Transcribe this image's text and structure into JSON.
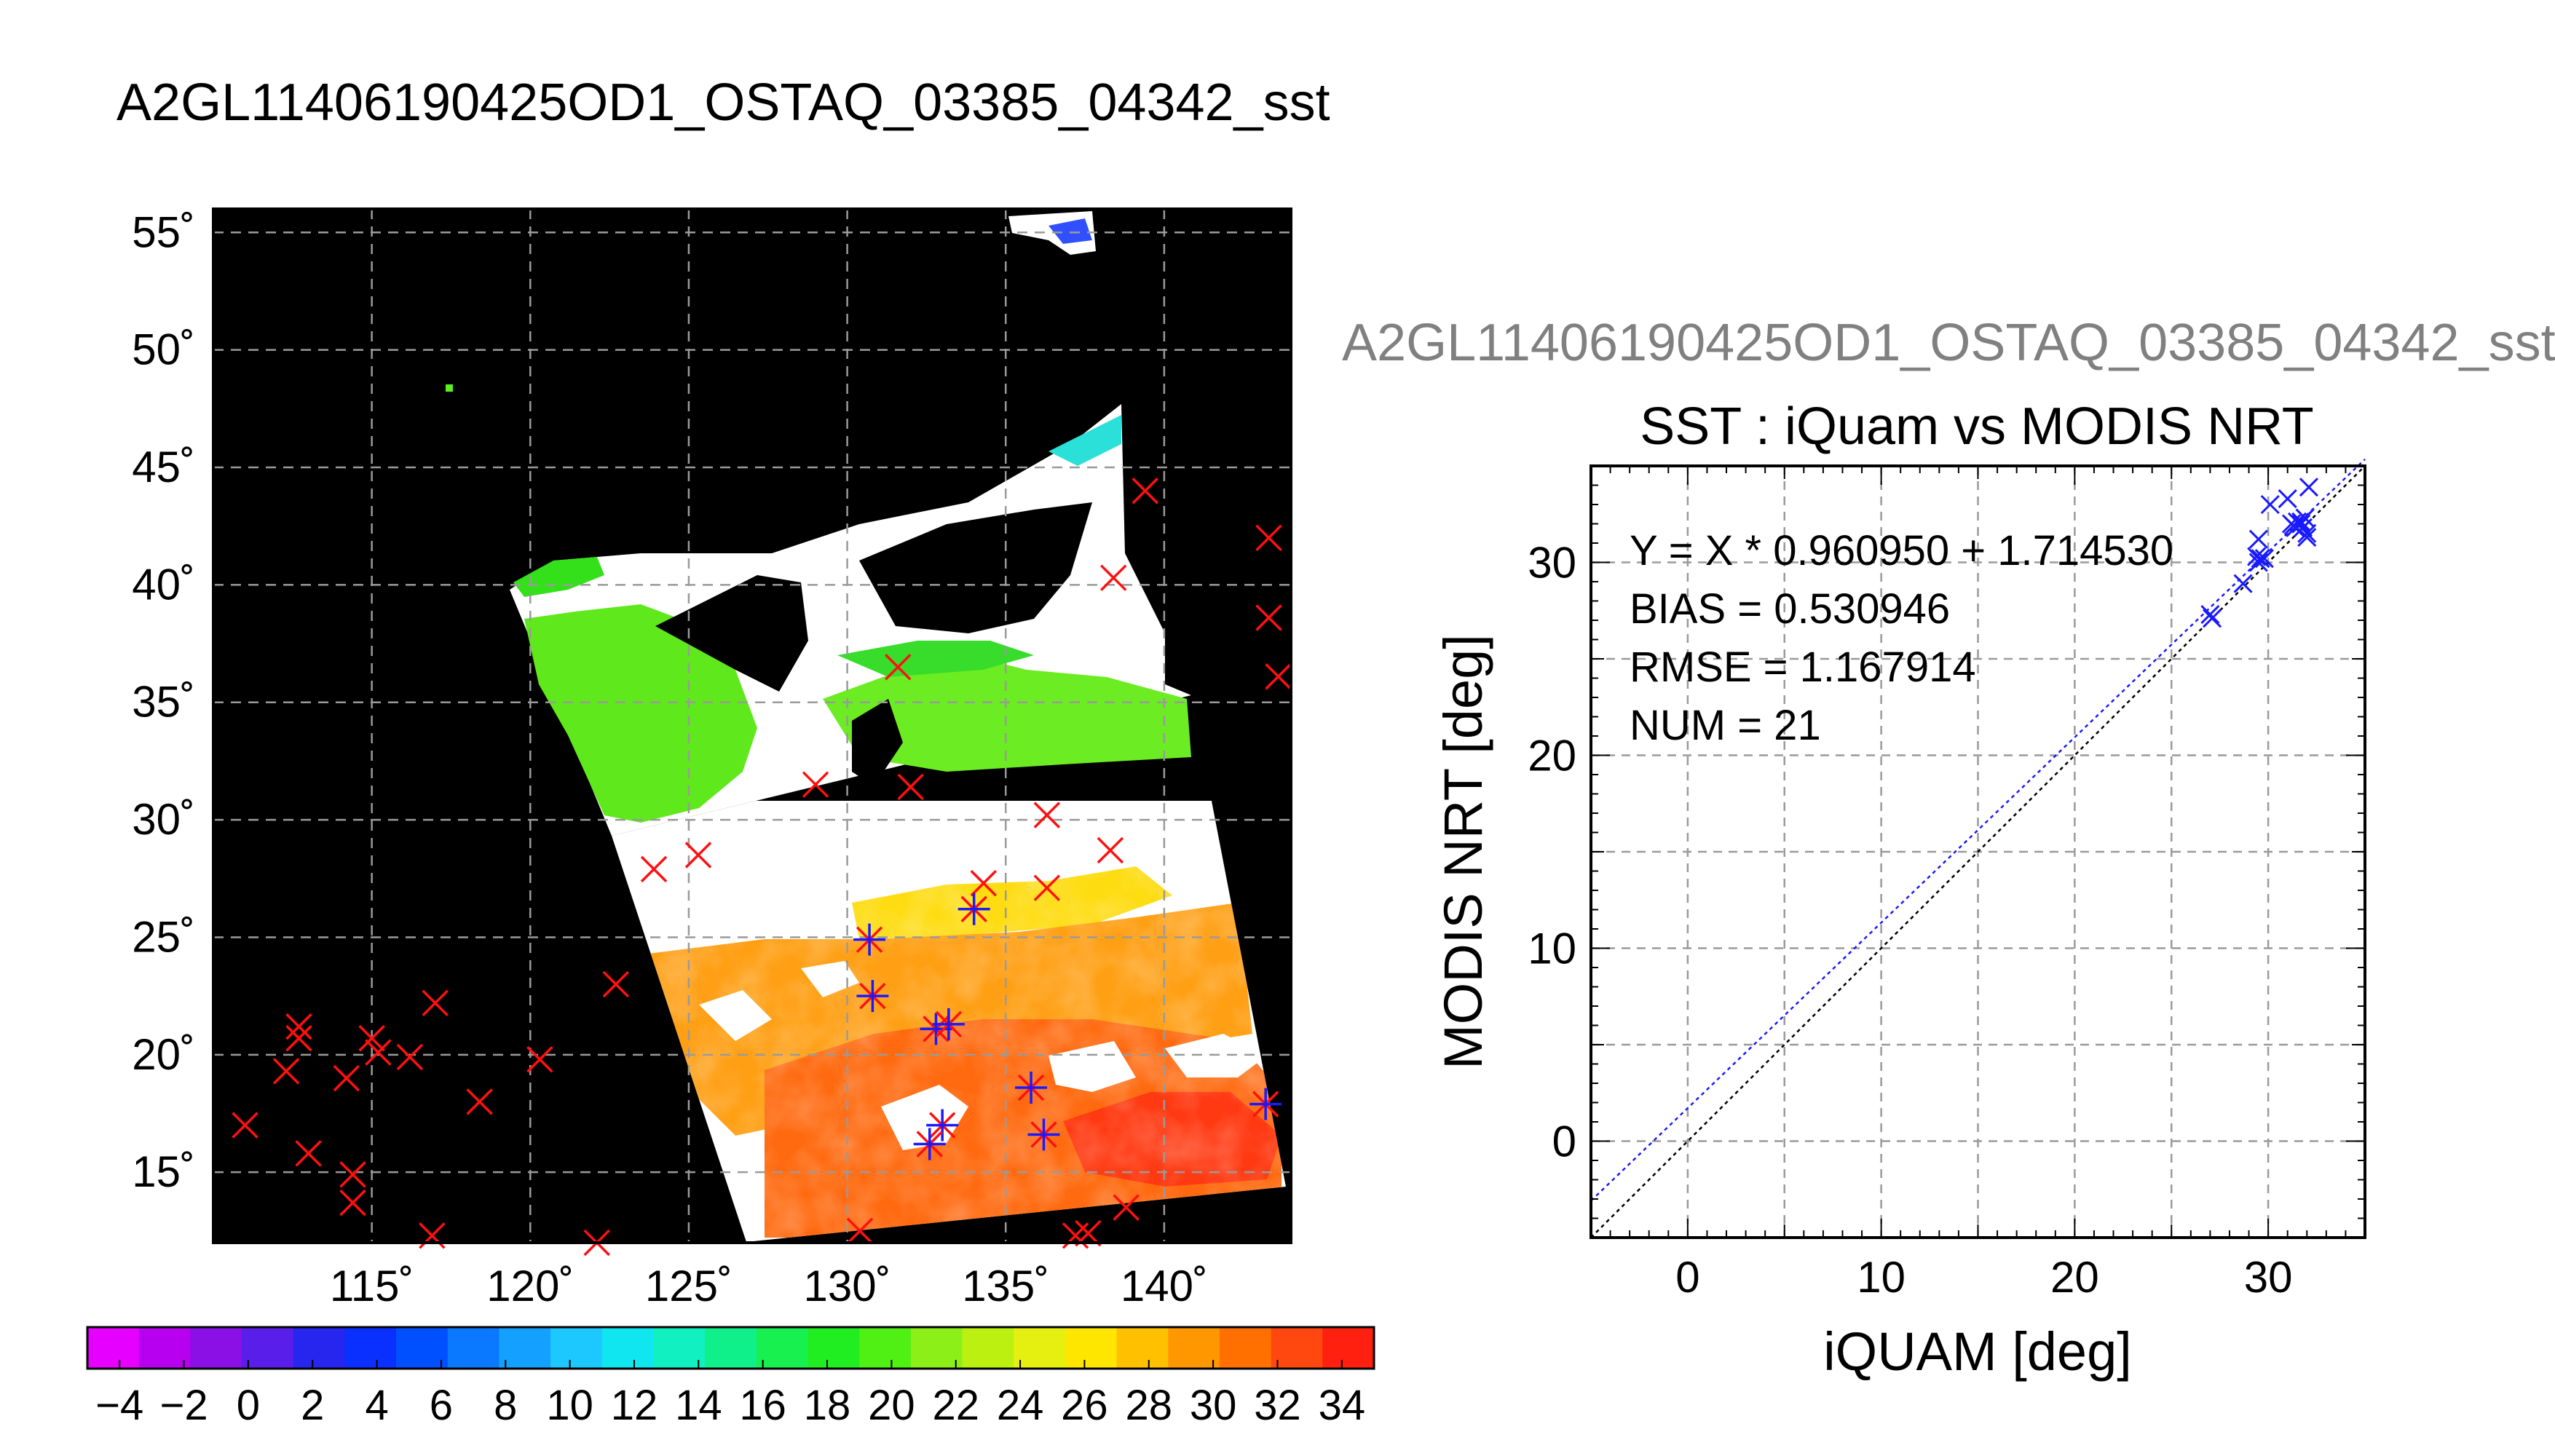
{
  "chart_data": [
    {
      "type": "heatmap",
      "title": "A2GL11406190425OD1_OSTAQ_03385_04342_sst",
      "map": {
        "lon_range": [
          110,
          144
        ],
        "lat_range": [
          12,
          56
        ],
        "lon_ticks": [
          115,
          120,
          125,
          130,
          135,
          140
        ],
        "lat_ticks": [
          15,
          20,
          25,
          30,
          35,
          40,
          45,
          50,
          55
        ],
        "degree_symbol": "˚",
        "grid": true
      },
      "colorbar": {
        "range": [
          -5,
          35
        ],
        "tick_values": [
          -4,
          -2,
          0,
          2,
          4,
          6,
          8,
          10,
          12,
          14,
          16,
          18,
          20,
          22,
          24,
          26,
          28,
          30,
          32,
          34
        ],
        "tick_labels": [
          "−4",
          "−2",
          "0",
          "2",
          "4",
          "6",
          "8",
          "10",
          "12",
          "14",
          "16",
          "18",
          "20",
          "22",
          "24",
          "26",
          "28",
          "30",
          "32",
          "34"
        ],
        "colors": [
          "#e600ff",
          "#b800f0",
          "#8a10e6",
          "#5a1eea",
          "#2626ee",
          "#0a30ff",
          "#0050ff",
          "#0a78ff",
          "#14a0ff",
          "#1cc8ff",
          "#10e6f0",
          "#10f0c0",
          "#10f08a",
          "#18f050",
          "#20ee20",
          "#50f014",
          "#8cf018",
          "#bcf010",
          "#e6f010",
          "#ffe600",
          "#ffc000",
          "#ff9800",
          "#ff7000",
          "#ff4810",
          "#ff2010"
        ]
      },
      "markers_outside_swath": [
        {
          "lon": 111.0,
          "lat": 17.0
        },
        {
          "lon": 112.3,
          "lat": 19.3
        },
        {
          "lon": 112.7,
          "lat": 21.2
        },
        {
          "lon": 112.7,
          "lat": 20.7
        },
        {
          "lon": 113.0,
          "lat": 15.8
        },
        {
          "lon": 114.2,
          "lat": 19.0
        },
        {
          "lon": 114.4,
          "lat": 14.9
        },
        {
          "lon": 114.4,
          "lat": 13.7
        },
        {
          "lon": 115.0,
          "lat": 20.7
        },
        {
          "lon": 115.2,
          "lat": 20.1
        },
        {
          "lon": 116.2,
          "lat": 19.9
        },
        {
          "lon": 117.0,
          "lat": 22.2
        },
        {
          "lon": 116.9,
          "lat": 12.3
        },
        {
          "lon": 118.4,
          "lat": 18.0
        },
        {
          "lon": 120.3,
          "lat": 19.8
        },
        {
          "lon": 122.1,
          "lat": 12.0
        },
        {
          "lon": 122.7,
          "lat": 23.0
        },
        {
          "lon": 123.9,
          "lat": 27.9
        },
        {
          "lon": 125.3,
          "lat": 28.5
        },
        {
          "lon": 129.0,
          "lat": 31.5
        },
        {
          "lon": 130.4,
          "lat": 12.5
        },
        {
          "lon": 131.6,
          "lat": 36.5
        },
        {
          "lon": 132.0,
          "lat": 31.4
        },
        {
          "lon": 134.3,
          "lat": 27.3
        },
        {
          "lon": 136.3,
          "lat": 30.2
        },
        {
          "lon": 136.3,
          "lat": 27.1
        },
        {
          "lon": 137.2,
          "lat": 12.3
        },
        {
          "lon": 137.6,
          "lat": 12.4
        },
        {
          "lon": 138.3,
          "lat": 28.7
        },
        {
          "lon": 138.4,
          "lat": 40.3
        },
        {
          "lon": 138.8,
          "lat": 13.5
        },
        {
          "lon": 139.4,
          "lat": 44.0
        },
        {
          "lon": 143.3,
          "lat": 42.0
        },
        {
          "lon": 143.3,
          "lat": 38.6
        },
        {
          "lon": 143.6,
          "lat": 36.1
        }
      ],
      "markers_matched": [
        {
          "lon": 130.7,
          "lat": 24.9
        },
        {
          "lon": 130.8,
          "lat": 22.5
        },
        {
          "lon": 132.8,
          "lat": 21.1
        },
        {
          "lon": 133.2,
          "lat": 21.3
        },
        {
          "lon": 133.0,
          "lat": 17.0
        },
        {
          "lon": 132.6,
          "lat": 16.2
        },
        {
          "lon": 134.0,
          "lat": 26.2
        },
        {
          "lon": 135.8,
          "lat": 18.6
        },
        {
          "lon": 136.2,
          "lat": 16.6
        },
        {
          "lon": 143.2,
          "lat": 17.9
        }
      ]
    },
    {
      "type": "scatter",
      "supertitle": "A2GL11406190425OD1_OSTAQ_03385_04342_sst",
      "title": "SST : iQuam vs MODIS NRT",
      "xlabel": "iQUAM [deg]",
      "ylabel": "MODIS NRT [deg]",
      "xlim": [
        -5,
        35
      ],
      "ylim": [
        -5,
        35
      ],
      "ticks": [
        0,
        10,
        20,
        30
      ],
      "grid": true,
      "stats": [
        "Y = X * 0.960950 + 1.714530",
        "BIAS = 0.530946",
        "RMSE = 1.167914",
        "NUM = 21"
      ],
      "fit": {
        "slope": 0.96095,
        "intercept": 1.71453
      },
      "points": [
        {
          "x": 27.0,
          "y": 27.3
        },
        {
          "x": 27.1,
          "y": 27.1
        },
        {
          "x": 28.7,
          "y": 28.9
        },
        {
          "x": 29.4,
          "y": 30.3
        },
        {
          "x": 29.5,
          "y": 30.0
        },
        {
          "x": 29.6,
          "y": 30.2
        },
        {
          "x": 29.8,
          "y": 30.2
        },
        {
          "x": 29.5,
          "y": 31.2
        },
        {
          "x": 30.1,
          "y": 33.0
        },
        {
          "x": 31.0,
          "y": 33.3
        },
        {
          "x": 31.3,
          "y": 31.9
        },
        {
          "x": 31.5,
          "y": 32.1
        },
        {
          "x": 31.7,
          "y": 32.0
        },
        {
          "x": 31.8,
          "y": 31.8
        },
        {
          "x": 31.9,
          "y": 32.3
        },
        {
          "x": 32.0,
          "y": 31.5
        },
        {
          "x": 32.1,
          "y": 33.9
        },
        {
          "x": 32.0,
          "y": 31.3
        },
        {
          "x": 31.4,
          "y": 31.8
        },
        {
          "x": 31.7,
          "y": 32.1
        },
        {
          "x": 31.2,
          "y": 32.0
        }
      ]
    }
  ]
}
